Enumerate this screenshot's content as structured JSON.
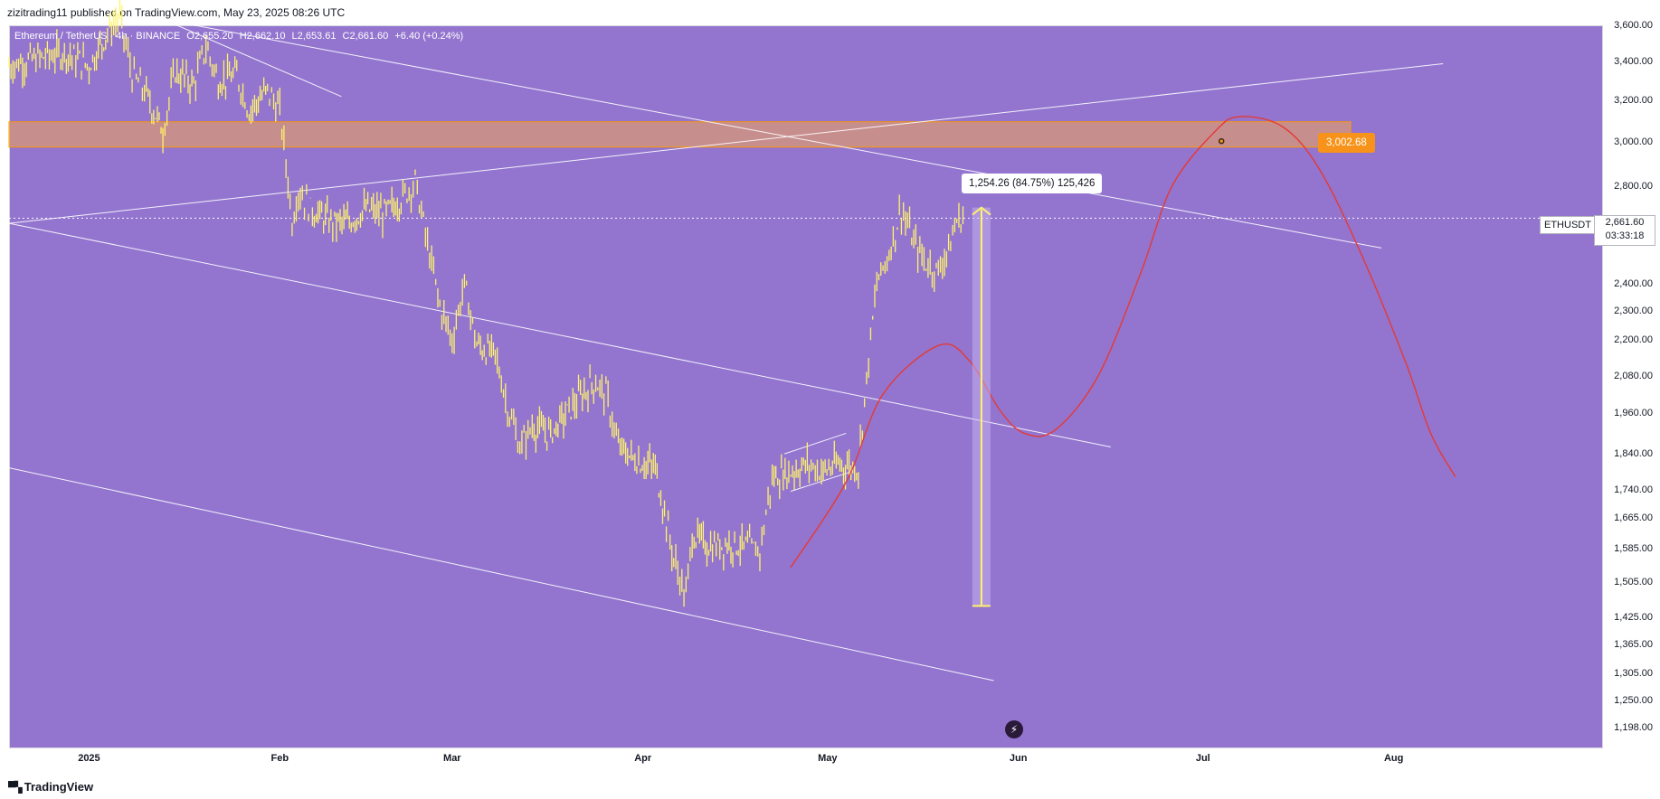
{
  "header": {
    "publish_line": "zizitrading11 published on TradingView.com, May 23, 2025 08:26 UTC"
  },
  "legend": {
    "symbol": "Ethereum / TetherUS · 4h · BINANCE",
    "open": "O2,655.20",
    "high": "H2,662.10",
    "low": "L2,653.61",
    "close": "C2,661.60",
    "change": "+6.40 (+0.24%)"
  },
  "colors": {
    "plot_bg": "#9375cf",
    "candles": "#fff36b",
    "resistance_zone": "#f2a35a",
    "projection": "#e53935",
    "target": "#f7931a"
  },
  "price_tag": {
    "symbol": "ETHUSDT",
    "price": "2,661.60",
    "countdown": "03:33:18"
  },
  "annotations": {
    "measure": "1,254.26 (84.75%) 125,426",
    "target": "3,002.68"
  },
  "footer": {
    "brand": "TradingView"
  },
  "icons": {
    "flash": "lightning-icon",
    "logo": "tradingview-logo-icon"
  },
  "chart_data": {
    "type": "line",
    "title": "",
    "log_scale": true,
    "ylim": [
      1160,
      3600
    ],
    "xlim": [
      "2024-12-19",
      "2025-09-04"
    ],
    "y_ticks": [
      "3,600.00",
      "3,400.00",
      "3,200.00",
      "3,000.00",
      "2,800.00",
      "2,400.00",
      "2,300.00",
      "2,200.00",
      "2,080.00",
      "1,960.00",
      "1,840.00",
      "1,740.00",
      "1,665.00",
      "1,585.00",
      "1,505.00",
      "1,425.00",
      "1,365.00",
      "1,305.00",
      "1,250.00",
      "1,198.00"
    ],
    "x_ticks": [
      {
        "label": "2025",
        "date": "2025-01-01"
      },
      {
        "label": "Feb",
        "date": "2025-02-01"
      },
      {
        "label": "Mar",
        "date": "2025-03-01"
      },
      {
        "label": "Apr",
        "date": "2025-04-01"
      },
      {
        "label": "May",
        "date": "2025-05-01"
      },
      {
        "label": "Jun",
        "date": "2025-06-01"
      },
      {
        "label": "Jul",
        "date": "2025-07-01"
      },
      {
        "label": "Aug",
        "date": "2025-08-01"
      }
    ],
    "series": [
      {
        "type": "candlestick-approx",
        "points": [
          [
            "2024-12-19",
            3380
          ],
          [
            "2024-12-24",
            3420
          ],
          [
            "2024-12-28",
            3450
          ],
          [
            "2025-01-01",
            3380
          ],
          [
            "2025-01-04",
            3560
          ],
          [
            "2025-01-06",
            3650
          ],
          [
            "2025-01-08",
            3330
          ],
          [
            "2025-01-10",
            3250
          ],
          [
            "2025-01-13",
            3050
          ],
          [
            "2025-01-15",
            3350
          ],
          [
            "2025-01-18",
            3280
          ],
          [
            "2025-01-20",
            3480
          ],
          [
            "2025-01-22",
            3300
          ],
          [
            "2025-01-25",
            3330
          ],
          [
            "2025-01-27",
            3150
          ],
          [
            "2025-01-30",
            3250
          ],
          [
            "2025-02-01",
            3150
          ],
          [
            "2025-02-02",
            2900
          ],
          [
            "2025-02-03",
            2650
          ],
          [
            "2025-02-04",
            2780
          ],
          [
            "2025-02-06",
            2700
          ],
          [
            "2025-02-09",
            2650
          ],
          [
            "2025-02-12",
            2640
          ],
          [
            "2025-02-15",
            2700
          ],
          [
            "2025-02-18",
            2680
          ],
          [
            "2025-02-21",
            2750
          ],
          [
            "2025-02-23",
            2820
          ],
          [
            "2025-02-25",
            2550
          ],
          [
            "2025-02-27",
            2320
          ],
          [
            "2025-03-01",
            2200
          ],
          [
            "2025-03-03",
            2400
          ],
          [
            "2025-03-05",
            2180
          ],
          [
            "2025-03-08",
            2150
          ],
          [
            "2025-03-10",
            1980
          ],
          [
            "2025-03-12",
            1860
          ],
          [
            "2025-03-14",
            1920
          ],
          [
            "2025-03-17",
            1900
          ],
          [
            "2025-03-20",
            1970
          ],
          [
            "2025-03-24",
            2060
          ],
          [
            "2025-03-26",
            2020
          ],
          [
            "2025-03-28",
            1860
          ],
          [
            "2025-03-31",
            1820
          ],
          [
            "2025-04-03",
            1800
          ],
          [
            "2025-04-06",
            1560
          ],
          [
            "2025-04-08",
            1470
          ],
          [
            "2025-04-09",
            1620
          ],
          [
            "2025-04-12",
            1590
          ],
          [
            "2025-04-15",
            1600
          ],
          [
            "2025-04-18",
            1590
          ],
          [
            "2025-04-20",
            1580
          ],
          [
            "2025-04-22",
            1770
          ],
          [
            "2025-04-25",
            1790
          ],
          [
            "2025-04-28",
            1810
          ],
          [
            "2025-04-30",
            1790
          ],
          [
            "2025-05-03",
            1810
          ],
          [
            "2025-05-06",
            1800
          ],
          [
            "2025-05-08",
            2200
          ],
          [
            "2025-05-09",
            2400
          ],
          [
            "2025-05-11",
            2520
          ],
          [
            "2025-05-13",
            2700
          ],
          [
            "2025-05-15",
            2560
          ],
          [
            "2025-05-17",
            2480
          ],
          [
            "2025-05-19",
            2450
          ],
          [
            "2025-05-21",
            2560
          ],
          [
            "2025-05-22",
            2650
          ],
          [
            "2025-05-23",
            2661.6
          ]
        ]
      },
      {
        "name": "",
        "type": "projection",
        "points": [
          [
            "2025-04-25",
            1540
          ],
          [
            "2025-05-04",
            1760
          ],
          [
            "2025-05-10",
            2020
          ],
          [
            "2025-05-19",
            2180
          ],
          [
            "2025-05-24",
            2130
          ],
          [
            "2025-05-29",
            1970
          ],
          [
            "2025-06-02",
            1900
          ],
          [
            "2025-06-07",
            1910
          ],
          [
            "2025-06-14",
            2080
          ],
          [
            "2025-06-21",
            2450
          ],
          [
            "2025-06-26",
            2800
          ],
          [
            "2025-07-03",
            3050
          ],
          [
            "2025-07-07",
            3120
          ],
          [
            "2025-07-14",
            3070
          ],
          [
            "2025-07-20",
            2870
          ],
          [
            "2025-07-27",
            2500
          ],
          [
            "2025-08-03",
            2120
          ],
          [
            "2025-08-07",
            1900
          ],
          [
            "2025-08-11",
            1775
          ]
        ]
      }
    ],
    "lines": [
      {
        "from": [
          "2024-12-19",
          2640
        ],
        "to": [
          "2025-08-09",
          3390
        ]
      },
      {
        "from": [
          "2025-01-03",
          3700
        ],
        "to": [
          "2025-07-30",
          2540
        ]
      },
      {
        "from": [
          "2024-12-19",
          2640
        ],
        "to": [
          "2025-06-16",
          1860
        ]
      },
      {
        "from": [
          "2024-12-19",
          1800
        ],
        "to": [
          "2025-05-28",
          1290
        ]
      },
      {
        "from": [
          "2025-01-12",
          3650
        ],
        "to": [
          "2025-02-11",
          3220
        ]
      },
      {
        "from": [
          "2025-04-24",
          1840
        ],
        "to": [
          "2025-05-04",
          1900
        ]
      },
      {
        "from": [
          "2025-04-25",
          1735
        ],
        "to": [
          "2025-05-05",
          1790
        ]
      }
    ],
    "zone": {
      "from": "2024-12-19",
      "to": "2025-07-25",
      "low": 2975,
      "high": 3095
    },
    "measurement": {
      "date": "2025-05-26",
      "from": 1450,
      "to": 2706,
      "text": "1,254.26 (84.75%) 125,426"
    },
    "current_price": 2661.6,
    "target": {
      "date": "2025-07-04",
      "price": 3002.68
    }
  }
}
